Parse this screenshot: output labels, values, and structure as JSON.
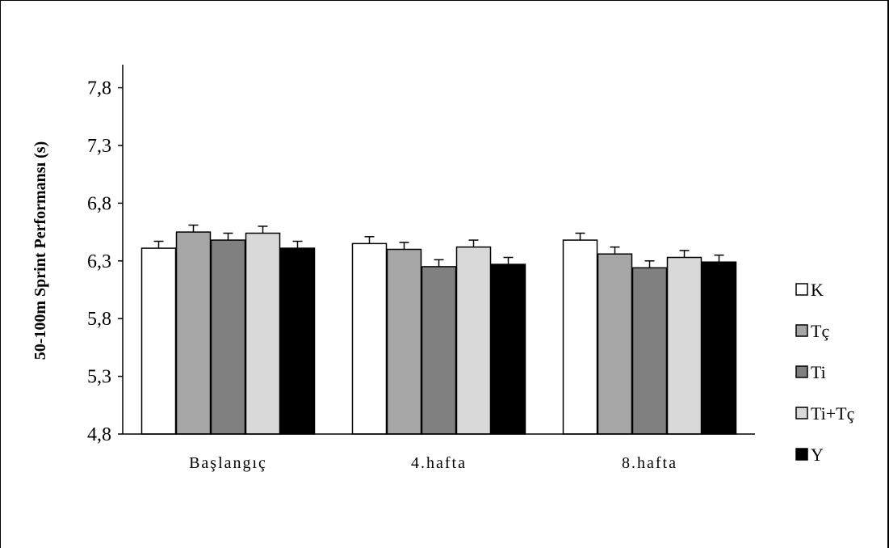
{
  "chart_data": {
    "type": "bar",
    "title": "",
    "xlabel": "",
    "ylabel": "50-100m Sprint Performansı (s)",
    "ylim": [
      4.8,
      8.0
    ],
    "yticks": [
      4.8,
      5.3,
      5.8,
      6.3,
      6.8,
      7.3,
      7.8
    ],
    "ytick_labels": [
      "4,8",
      "5,3",
      "5,8",
      "6,3",
      "6,8",
      "7,3",
      "7,8"
    ],
    "categories": [
      "Başlangıç",
      "4.hafta",
      "8.hafta"
    ],
    "series": [
      {
        "name": "K",
        "values": [
          6.41,
          6.45,
          6.48
        ],
        "errors": [
          0.06,
          0.06,
          0.06
        ],
        "color": "#ffffff"
      },
      {
        "name": "Tç",
        "values": [
          6.55,
          6.4,
          6.36
        ],
        "errors": [
          0.06,
          0.06,
          0.06
        ],
        "color": "#a6a6a6"
      },
      {
        "name": "Ti",
        "values": [
          6.48,
          6.25,
          6.24
        ],
        "errors": [
          0.06,
          0.06,
          0.06
        ],
        "color": "#808080"
      },
      {
        "name": "Ti+Tç",
        "values": [
          6.54,
          6.42,
          6.33
        ],
        "errors": [
          0.06,
          0.06,
          0.06
        ],
        "color": "#d9d9d9"
      },
      {
        "name": "Y",
        "values": [
          6.41,
          6.27,
          6.29
        ],
        "errors": [
          0.06,
          0.06,
          0.06
        ],
        "color": "#000000"
      }
    ],
    "grid": false,
    "legend_position": "right"
  }
}
